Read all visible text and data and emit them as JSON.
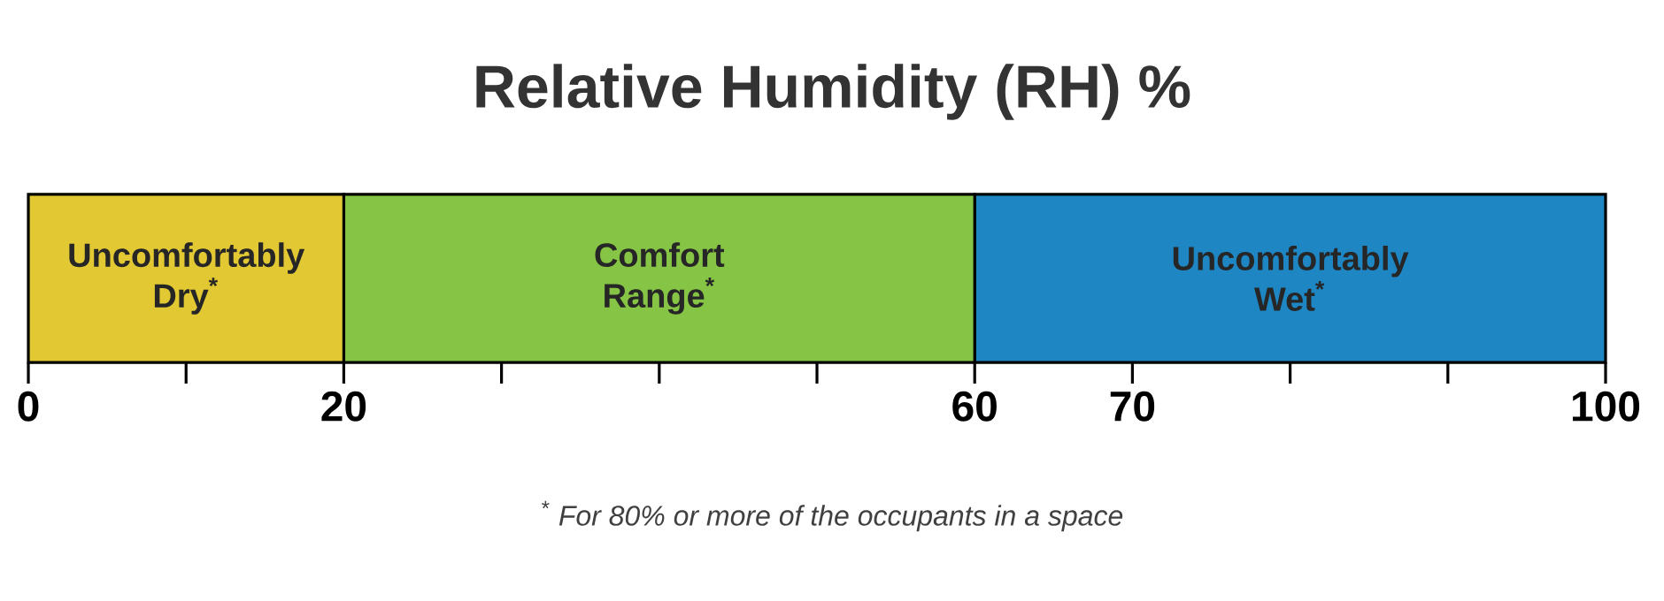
{
  "chart_data": {
    "type": "bar",
    "orientation": "horizontal",
    "stacked": true,
    "title": "Relative Humidity (RH) %",
    "categories": [
      null
    ],
    "xlim": [
      0,
      100
    ],
    "xticks": [
      {
        "value": 0,
        "label": "0"
      },
      {
        "value": 10,
        "label": null
      },
      {
        "value": 20,
        "label": "20"
      },
      {
        "value": 30,
        "label": null
      },
      {
        "value": 40,
        "label": null
      },
      {
        "value": 50,
        "label": null
      },
      {
        "value": 60,
        "label": "60"
      },
      {
        "value": 70,
        "label": "70"
      },
      {
        "value": 80,
        "label": null
      },
      {
        "value": 90,
        "label": null
      },
      {
        "value": 100,
        "label": "100"
      }
    ],
    "series": [
      {
        "name": "Uncomfortably Dry$^{*}$",
        "color": "#e2c832",
        "values": [
          20
        ]
      },
      {
        "name": "Comfort Range$^{*}$",
        "color": "#86c445",
        "values": [
          40
        ]
      },
      {
        "name": "Uncomfortably Wet$^{*}$",
        "color": "#1f86c4",
        "values": [
          40
        ]
      }
    ],
    "annotations": [
      "$^{*}$ For 80% or more of the occupants in a space"
    ]
  }
}
